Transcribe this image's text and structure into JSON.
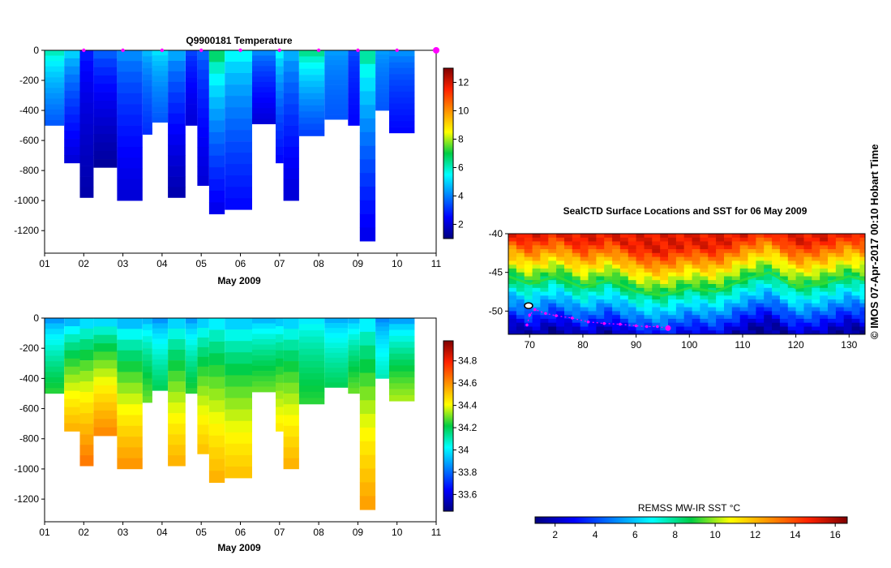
{
  "chart_data": [
    {
      "type": "heatmap",
      "name": "temperature-section",
      "title": "Q9900181  Temperature",
      "xlabel": "May 2009",
      "x_ticks": [
        "01",
        "02",
        "03",
        "04",
        "05",
        "06",
        "07",
        "08",
        "09",
        "10",
        "11"
      ],
      "x_range_days": [
        1,
        11
      ],
      "y_ticks": [
        "0",
        "-200",
        "-400",
        "-600",
        "-800",
        "-1000",
        "-1200"
      ],
      "y_range": [
        -1350,
        0
      ],
      "colorbar": {
        "min": 1,
        "max": 13,
        "ticks": [
          "2",
          "4",
          "6",
          "8",
          "10",
          "12"
        ]
      },
      "profile_marker_days": [
        2,
        3,
        4,
        5,
        6,
        7,
        8,
        9,
        10,
        11
      ],
      "profiles": [
        {
          "start": 1.0,
          "end": 1.5,
          "depth": 500,
          "surface": 6.5,
          "deep": 3.5
        },
        {
          "start": 1.5,
          "end": 1.9,
          "depth": 750,
          "surface": 5.5,
          "deep": 2.0
        },
        {
          "start": 1.9,
          "end": 2.25,
          "depth": 980,
          "surface": 3.0,
          "deep": 1.5
        },
        {
          "start": 2.25,
          "end": 2.85,
          "depth": 780,
          "surface": 4.0,
          "deep": 1.3
        },
        {
          "start": 2.85,
          "end": 3.5,
          "depth": 1000,
          "surface": 4.5,
          "deep": 2.0
        },
        {
          "start": 3.5,
          "end": 3.75,
          "depth": 560,
          "surface": 5.0,
          "deep": 3.0
        },
        {
          "start": 3.75,
          "end": 4.15,
          "depth": 480,
          "surface": 5.5,
          "deep": 3.5
        },
        {
          "start": 4.15,
          "end": 4.6,
          "depth": 980,
          "surface": 5.0,
          "deep": 1.5
        },
        {
          "start": 4.6,
          "end": 4.9,
          "depth": 500,
          "surface": 3.5,
          "deep": 2.0
        },
        {
          "start": 4.9,
          "end": 5.2,
          "depth": 900,
          "surface": 4.0,
          "deep": 2.0
        },
        {
          "start": 5.2,
          "end": 5.6,
          "depth": 1090,
          "surface": 7.5,
          "deep": 2.2
        },
        {
          "start": 5.6,
          "end": 6.3,
          "depth": 1060,
          "surface": 6.0,
          "deep": 2.5
        },
        {
          "start": 6.3,
          "end": 6.9,
          "depth": 490,
          "surface": 4.5,
          "deep": 2.0
        },
        {
          "start": 6.9,
          "end": 7.1,
          "depth": 750,
          "surface": 6.0,
          "deep": 2.5
        },
        {
          "start": 7.1,
          "end": 7.5,
          "depth": 1000,
          "surface": 5.0,
          "deep": 2.0
        },
        {
          "start": 7.5,
          "end": 8.15,
          "depth": 570,
          "surface": 7.0,
          "deep": 3.2
        },
        {
          "start": 8.15,
          "end": 8.75,
          "depth": 460,
          "surface": 4.5,
          "deep": 3.5
        },
        {
          "start": 8.75,
          "end": 9.05,
          "depth": 500,
          "surface": 3.5,
          "deep": 2.5
        },
        {
          "start": 9.05,
          "end": 9.45,
          "depth": 1270,
          "surface": 7.0,
          "deep": 2.2
        },
        {
          "start": 9.45,
          "end": 9.8,
          "depth": 400,
          "surface": 4.5,
          "deep": 3.5
        },
        {
          "start": 9.8,
          "end": 10.45,
          "depth": 550,
          "surface": 4.5,
          "deep": 2.5
        }
      ]
    },
    {
      "type": "heatmap",
      "name": "salinity-section",
      "title": "",
      "xlabel": "May 2009",
      "x_ticks": [
        "01",
        "02",
        "03",
        "04",
        "05",
        "06",
        "07",
        "08",
        "09",
        "10",
        "11"
      ],
      "x_range_days": [
        1,
        11
      ],
      "y_ticks": [
        "0",
        "-200",
        "-400",
        "-600",
        "-800",
        "-1000",
        "-1200"
      ],
      "y_range": [
        -1350,
        0
      ],
      "colorbar": {
        "min": 33.45,
        "max": 34.98,
        "ticks": [
          "33.6",
          "33.8",
          "34",
          "34.2",
          "34.4",
          "34.6",
          "34.8"
        ]
      },
      "profiles": [
        {
          "start": 1.0,
          "end": 1.5,
          "depth": 500,
          "surface": 33.8,
          "deep": 34.25
        },
        {
          "start": 1.5,
          "end": 1.9,
          "depth": 750,
          "surface": 33.8,
          "deep": 34.55
        },
        {
          "start": 1.9,
          "end": 2.25,
          "depth": 980,
          "surface": 33.85,
          "deep": 34.65
        },
        {
          "start": 2.25,
          "end": 2.85,
          "depth": 780,
          "surface": 33.85,
          "deep": 34.62
        },
        {
          "start": 2.85,
          "end": 3.5,
          "depth": 1000,
          "surface": 33.8,
          "deep": 34.6
        },
        {
          "start": 3.5,
          "end": 3.75,
          "depth": 560,
          "surface": 33.85,
          "deep": 34.3
        },
        {
          "start": 3.75,
          "end": 4.15,
          "depth": 480,
          "surface": 33.8,
          "deep": 34.2
        },
        {
          "start": 4.15,
          "end": 4.6,
          "depth": 980,
          "surface": 33.85,
          "deep": 34.55
        },
        {
          "start": 4.6,
          "end": 4.9,
          "depth": 500,
          "surface": 33.8,
          "deep": 34.25
        },
        {
          "start": 4.9,
          "end": 5.2,
          "depth": 900,
          "surface": 33.85,
          "deep": 34.52
        },
        {
          "start": 5.2,
          "end": 5.6,
          "depth": 1090,
          "surface": 33.9,
          "deep": 34.55
        },
        {
          "start": 5.6,
          "end": 6.3,
          "depth": 1060,
          "surface": 33.85,
          "deep": 34.52
        },
        {
          "start": 6.3,
          "end": 6.9,
          "depth": 490,
          "surface": 33.85,
          "deep": 34.3
        },
        {
          "start": 6.9,
          "end": 7.1,
          "depth": 750,
          "surface": 33.85,
          "deep": 34.45
        },
        {
          "start": 7.1,
          "end": 7.5,
          "depth": 1000,
          "surface": 33.85,
          "deep": 34.55
        },
        {
          "start": 7.5,
          "end": 8.15,
          "depth": 570,
          "surface": 33.95,
          "deep": 34.25
        },
        {
          "start": 8.15,
          "end": 8.75,
          "depth": 460,
          "surface": 33.85,
          "deep": 34.2
        },
        {
          "start": 8.75,
          "end": 9.05,
          "depth": 500,
          "surface": 33.85,
          "deep": 34.3
        },
        {
          "start": 9.05,
          "end": 9.45,
          "depth": 1270,
          "surface": 33.9,
          "deep": 34.58
        },
        {
          "start": 9.45,
          "end": 9.8,
          "depth": 400,
          "surface": 33.8,
          "deep": 34.1
        },
        {
          "start": 9.8,
          "end": 10.45,
          "depth": 550,
          "surface": 33.8,
          "deep": 34.35
        }
      ]
    },
    {
      "type": "heatmap",
      "name": "sst-map",
      "title": "SealCTD Surface Locations and SST for 06 May 2009",
      "xlim": [
        66,
        133
      ],
      "ylim": [
        -53,
        -40
      ],
      "x_ticks": [
        70,
        80,
        90,
        100,
        110,
        120,
        130
      ],
      "y_ticks": [
        -40,
        -45,
        -50
      ],
      "y_tick_labels": [
        "-40",
        "-45",
        "-50"
      ],
      "x_tick_labels": [
        "70",
        "80",
        "90",
        "100",
        "110",
        "120",
        "130"
      ],
      "front": [
        [
          66,
          -45.5
        ],
        [
          70,
          -46.5
        ],
        [
          75,
          -45.5
        ],
        [
          80,
          -47
        ],
        [
          85,
          -46
        ],
        [
          90,
          -47.5
        ],
        [
          95,
          -48
        ],
        [
          100,
          -47
        ],
        [
          105,
          -47.5
        ],
        [
          110,
          -46
        ],
        [
          115,
          -45
        ],
        [
          120,
          -47
        ],
        [
          125,
          -46.5
        ],
        [
          130,
          -45.5
        ],
        [
          133,
          -46
        ]
      ],
      "track": [
        [
          69.5,
          -51.8
        ],
        [
          70,
          -50.5
        ],
        [
          71,
          -49.8
        ],
        [
          73,
          -50.3
        ],
        [
          75,
          -50.6
        ],
        [
          78,
          -50.9
        ],
        [
          81,
          -51.4
        ],
        [
          84,
          -51.6
        ],
        [
          87,
          -51.7
        ],
        [
          90,
          -51.9
        ],
        [
          92,
          -52.0
        ],
        [
          94,
          -52.0
        ],
        [
          96,
          -52.2
        ]
      ],
      "track_end": [
        96,
        -52.2
      ],
      "island": [
        69.8,
        -49.3
      ],
      "colorbar": {
        "label": "REMSS MW-IR SST °C",
        "min": 1,
        "max": 16.6,
        "ticks": [
          "2",
          "4",
          "6",
          "8",
          "10",
          "12",
          "14",
          "16"
        ]
      }
    }
  ],
  "colors": {
    "marker": "#ff00ff",
    "axis": "#000000"
  },
  "credit": "© IMOS 07-Apr-2017 00:10 Hobart Time"
}
